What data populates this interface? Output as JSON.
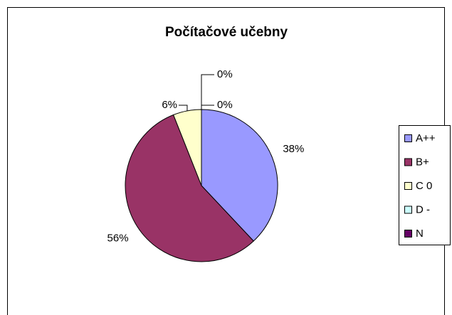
{
  "chart_data": {
    "type": "pie",
    "title": "Počítačové učebny",
    "categories": [
      "A++",
      "B+",
      "C 0",
      "D -",
      "N"
    ],
    "values": [
      38,
      56,
      6,
      0,
      0
    ],
    "value_labels": [
      "38%",
      "56%",
      "6%",
      "0%",
      "0%"
    ],
    "colors": [
      "#9999ff",
      "#993366",
      "#ffffcc",
      "#ccffff",
      "#660066"
    ],
    "legend": "right"
  }
}
